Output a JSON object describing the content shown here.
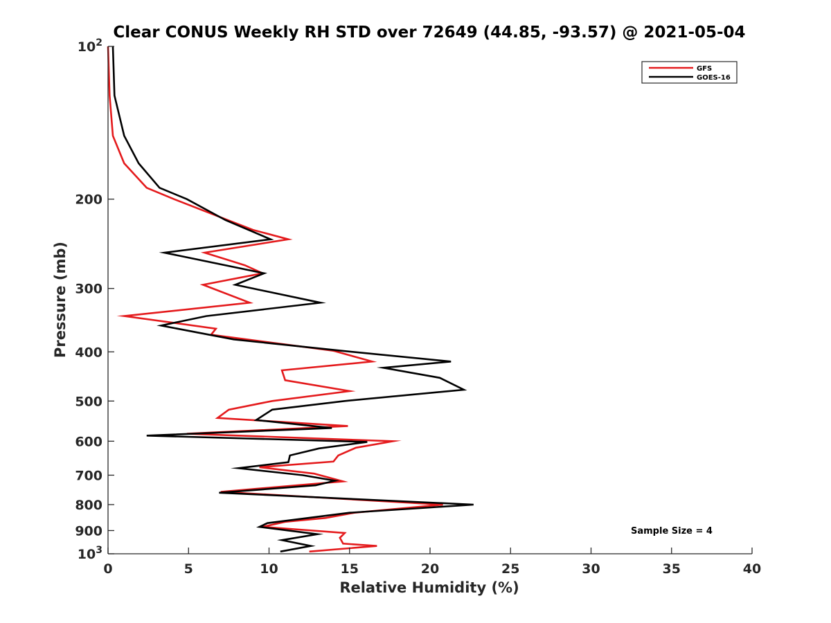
{
  "chart_data": {
    "type": "line",
    "title": "Clear CONUS Weekly RH STD over 72649 (44.85, -93.57) @ 2021-05-04",
    "xlabel": "Relative Humidity (%)",
    "ylabel": "Pressure (mb)",
    "xlim": [
      0,
      40
    ],
    "ylim": [
      100,
      1000
    ],
    "yscale": "log",
    "y_reversed": true,
    "x_ticks": [
      0,
      5,
      10,
      15,
      20,
      25,
      30,
      35,
      40
    ],
    "y_ticks": [
      {
        "value": 100,
        "label": "10",
        "sup": "2"
      },
      {
        "value": 200,
        "label": "200",
        "sup": ""
      },
      {
        "value": 300,
        "label": "300",
        "sup": ""
      },
      {
        "value": 400,
        "label": "400",
        "sup": ""
      },
      {
        "value": 500,
        "label": "500",
        "sup": ""
      },
      {
        "value": 600,
        "label": "600",
        "sup": ""
      },
      {
        "value": 700,
        "label": "700",
        "sup": ""
      },
      {
        "value": 800,
        "label": "800",
        "sup": ""
      },
      {
        "value": 900,
        "label": "900",
        "sup": ""
      },
      {
        "value": 1000,
        "label": "10",
        "sup": "3"
      }
    ],
    "grid": false,
    "legend_position": "top-right",
    "annotation": "Sample Size = 4",
    "series": [
      {
        "name": "GFS",
        "color": "#e41a1c",
        "points": [
          [
            0.0,
            100
          ],
          [
            0.1,
            125
          ],
          [
            0.3,
            150
          ],
          [
            1.0,
            170
          ],
          [
            2.4,
            190
          ],
          [
            4.1,
            200
          ],
          [
            9.0,
            230
          ],
          [
            11.2,
            240
          ],
          [
            6.0,
            255
          ],
          [
            8.5,
            270
          ],
          [
            9.6,
            280
          ],
          [
            5.9,
            295
          ],
          [
            8.8,
            320
          ],
          [
            1.0,
            340
          ],
          [
            6.7,
            360
          ],
          [
            6.4,
            370
          ],
          [
            14.0,
            398
          ],
          [
            16.4,
            418
          ],
          [
            10.8,
            435
          ],
          [
            11.0,
            455
          ],
          [
            15.0,
            478
          ],
          [
            10.2,
            500
          ],
          [
            7.5,
            520
          ],
          [
            6.8,
            540
          ],
          [
            14.9,
            560
          ],
          [
            4.9,
            580
          ],
          [
            17.7,
            600
          ],
          [
            15.4,
            618
          ],
          [
            14.3,
            640
          ],
          [
            14.0,
            658
          ],
          [
            9.4,
            675
          ],
          [
            12.8,
            695
          ],
          [
            14.6,
            720
          ],
          [
            7.0,
            755
          ],
          [
            20.8,
            800
          ],
          [
            15.3,
            830
          ],
          [
            13.5,
            850
          ],
          [
            11.0,
            865
          ],
          [
            9.6,
            885
          ],
          [
            14.7,
            910
          ],
          [
            14.4,
            930
          ],
          [
            14.6,
            955
          ],
          [
            16.7,
            965
          ],
          [
            12.5,
            990
          ]
        ]
      },
      {
        "name": "GOES-16",
        "color": "#000000",
        "points": [
          [
            0.3,
            100
          ],
          [
            0.4,
            125
          ],
          [
            1.0,
            150
          ],
          [
            1.9,
            170
          ],
          [
            3.2,
            190
          ],
          [
            4.9,
            200
          ],
          [
            7.3,
            220
          ],
          [
            10.1,
            240
          ],
          [
            3.5,
            255
          ],
          [
            9.7,
            280
          ],
          [
            7.9,
            295
          ],
          [
            13.2,
            320
          ],
          [
            6.1,
            340
          ],
          [
            3.3,
            355
          ],
          [
            7.8,
            378
          ],
          [
            14.5,
            398
          ],
          [
            21.3,
            418
          ],
          [
            17.1,
            430
          ],
          [
            20.6,
            450
          ],
          [
            22.1,
            475
          ],
          [
            14.7,
            500
          ],
          [
            10.2,
            520
          ],
          [
            9.2,
            545
          ],
          [
            13.9,
            565
          ],
          [
            2.4,
            585
          ],
          [
            16.1,
            602
          ],
          [
            13.1,
            620
          ],
          [
            11.3,
            640
          ],
          [
            11.2,
            660
          ],
          [
            8.1,
            678
          ],
          [
            12.1,
            700
          ],
          [
            14.1,
            718
          ],
          [
            12.9,
            733
          ],
          [
            6.9,
            758
          ],
          [
            22.7,
            800
          ],
          [
            15.0,
            830
          ],
          [
            9.9,
            870
          ],
          [
            9.4,
            885
          ],
          [
            13.0,
            915
          ],
          [
            10.8,
            940
          ],
          [
            12.6,
            965
          ],
          [
            10.7,
            990
          ]
        ]
      }
    ]
  }
}
